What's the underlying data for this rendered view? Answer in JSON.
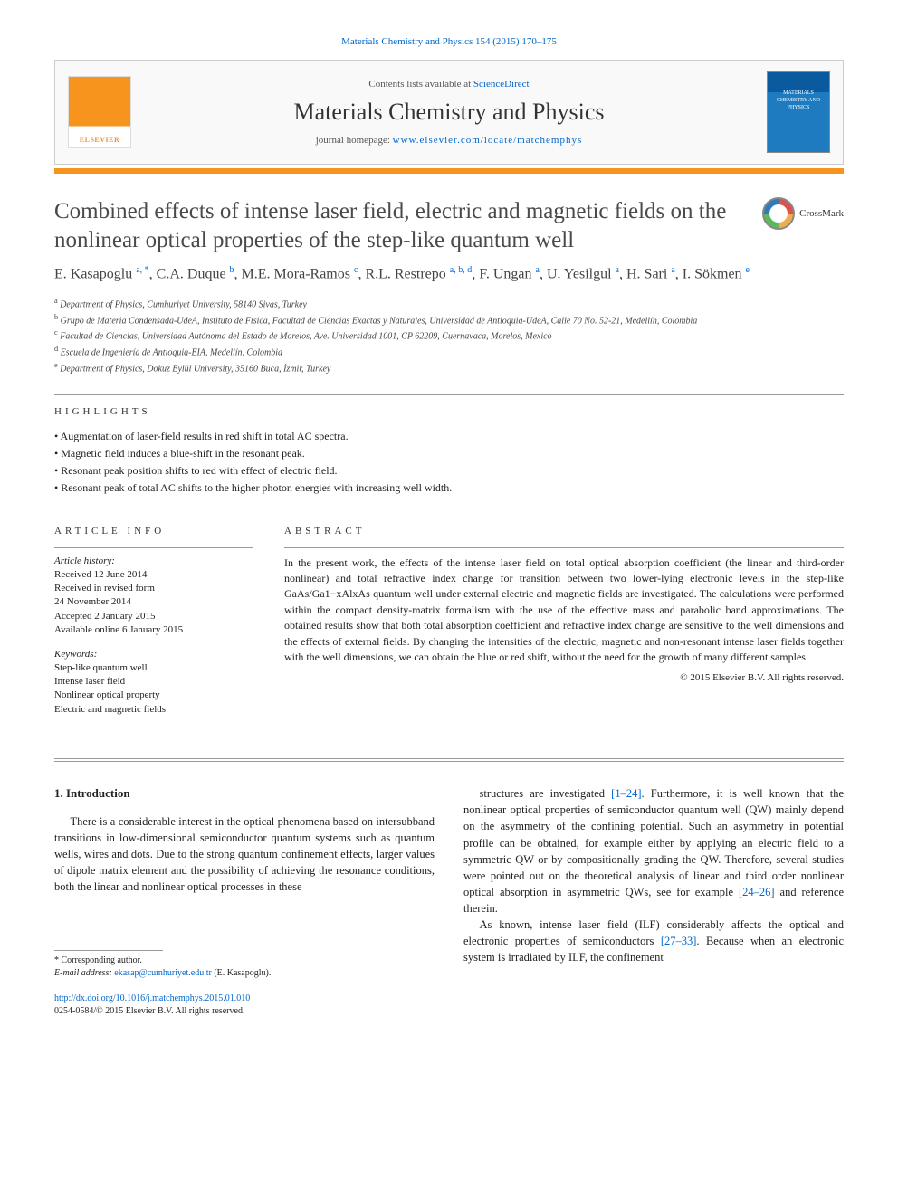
{
  "header": {
    "citation": "Materials Chemistry and Physics 154 (2015) 170–175",
    "contents_prefix": "Contents lists available at ",
    "contents_link": "ScienceDirect",
    "journal_name": "Materials Chemistry and Physics",
    "homepage_prefix": "journal homepage: ",
    "homepage_url": "www.elsevier.com/locate/matchemphys",
    "elsevier_label": "ELSEVIER",
    "cover_text": "MATERIALS CHEMISTRY AND PHYSICS"
  },
  "crossmark_label": "CrossMark",
  "title": "Combined effects of intense laser field, electric and magnetic fields on the nonlinear optical properties of the step-like quantum well",
  "authors_html": "E. Kasapoglu <sup>a, *</sup>, C.A. Duque <sup>b</sup>, M.E. Mora-Ramos <sup>c</sup>, R.L. Restrepo <sup>a, b, d</sup>, F. Ungan <sup>a</sup>, U. Yesilgul <sup>a</sup>, H. Sari <sup>a</sup>, I. Sökmen <sup>e</sup>",
  "affiliations": [
    "a Department of Physics, Cumhuriyet University, 58140 Sivas, Turkey",
    "b Grupo de Materia Condensada-UdeA, Instituto de Física, Facultad de Ciencias Exactas y Naturales, Universidad de Antioquia-UdeA, Calle 70 No. 52-21, Medellín, Colombia",
    "c Facultad de Ciencias, Universidad Autónoma del Estado de Morelos, Ave. Universidad 1001, CP 62209, Cuernavaca, Morelos, Mexico",
    "d Escuela de Ingeniería de Antioquia-EIA, Medellín, Colombia",
    "e Department of Physics, Dokuz Eylül University, 35160 Buca, İzmir, Turkey"
  ],
  "highlights_label": "HIGHLIGHTS",
  "highlights": [
    "Augmentation of laser-field results in red shift in total AC spectra.",
    "Magnetic field induces a blue-shift in the resonant peak.",
    "Resonant peak position shifts to red with effect of electric field.",
    "Resonant peak of total AC shifts to the higher photon energies with increasing well width."
  ],
  "article_info": {
    "heading": "ARTICLE INFO",
    "history_label": "Article history:",
    "history": "Received 12 June 2014\nReceived in revised form\n24 November 2014\nAccepted 2 January 2015\nAvailable online 6 January 2015",
    "keywords_label": "Keywords:",
    "keywords": "Step-like quantum well\nIntense laser field\nNonlinear optical property\nElectric and magnetic fields"
  },
  "abstract": {
    "heading": "ABSTRACT",
    "text": "In the present work, the effects of the intense laser field on total optical absorption coefficient (the linear and third-order nonlinear) and total refractive index change for transition between two lower-lying electronic levels in the step-like GaAs/Ga1−xAlxAs quantum well under external electric and magnetic fields are investigated. The calculations were performed within the compact density-matrix formalism with the use of the effective mass and parabolic band approximations. The obtained results show that both total absorption coefficient and refractive index change are sensitive to the well dimensions and the effects of external fields. By changing the intensities of the electric, magnetic and non-resonant intense laser fields together with the well dimensions, we can obtain the blue or red shift, without the need for the growth of many different samples.",
    "copyright": "© 2015 Elsevier B.V. All rights reserved."
  },
  "intro": {
    "heading": "1. Introduction",
    "para1": "There is a considerable interest in the optical phenomena based on intersubband transitions in low-dimensional semiconductor quantum systems such as quantum wells, wires and dots. Due to the strong quantum confinement effects, larger values of dipole matrix element and the possibility of achieving the resonance conditions, both the linear and nonlinear optical processes in these",
    "para2a": "structures are investigated ",
    "ref1": "[1–24]",
    "para2b": ". Furthermore, it is well known that the nonlinear optical properties of semiconductor quantum well (QW) mainly depend on the asymmetry of the confining potential. Such an asymmetry in potential profile can be obtained, for example either by applying an electric field to a symmetric QW or by compositionally grading the QW. Therefore, several studies were pointed out on the theoretical analysis of linear and third order nonlinear optical absorption in asymmetric QWs, see for example ",
    "ref2": "[24–26]",
    "para2c": " and reference therein.",
    "para3a": "As known, intense laser field (ILF) considerably affects the optical and electronic properties of semiconductors ",
    "ref3": "[27–33]",
    "para3b": ". Because when an electronic system is irradiated by ILF, the confinement"
  },
  "footnote": {
    "corr": "* Corresponding author.",
    "email_label": "E-mail address: ",
    "email": "ekasap@cumhuriyet.edu.tr",
    "email_suffix": " (E. Kasapoglu)."
  },
  "doi": {
    "url": "http://dx.doi.org/10.1016/j.matchemphys.2015.01.010",
    "issn_line": "0254-0584/© 2015 Elsevier B.V. All rights reserved."
  }
}
